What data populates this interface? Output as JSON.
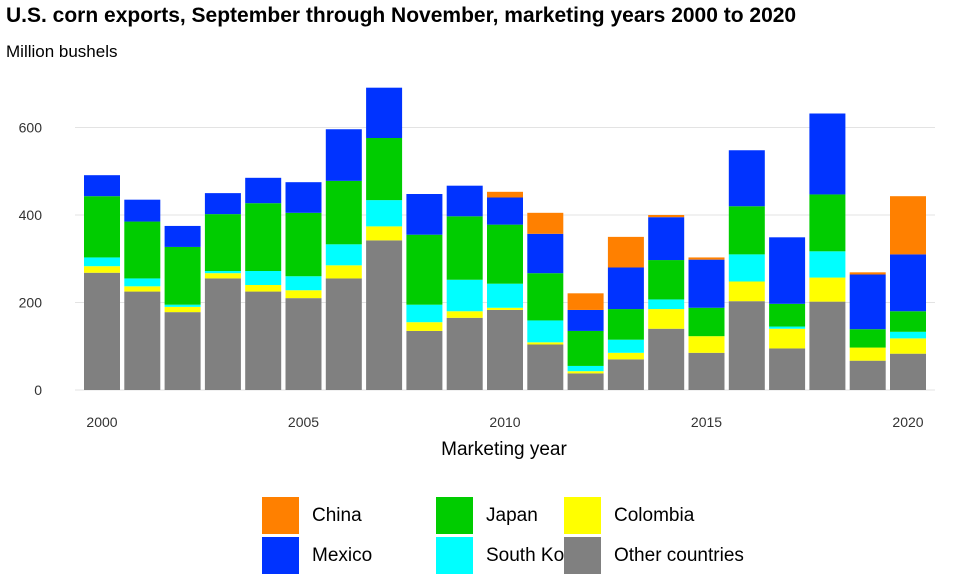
{
  "chart_data": {
    "type": "bar",
    "stacked": true,
    "title": "U.S. corn exports, September through November, marketing years 2000 to 2020",
    "subtitle": "Million bushels",
    "xlabel": "Marketing year",
    "ylabel": "",
    "ylim": [
      0,
      720
    ],
    "yticks": [
      0,
      200,
      400,
      600
    ],
    "xticks": [
      2000,
      2005,
      2010,
      2015,
      2020
    ],
    "grid": true,
    "legend_position": "bottom",
    "categories": [
      2000,
      2001,
      2002,
      2003,
      2004,
      2005,
      2006,
      2007,
      2008,
      2009,
      2010,
      2011,
      2012,
      2013,
      2014,
      2015,
      2016,
      2017,
      2018,
      2019,
      2020
    ],
    "series": [
      {
        "name": "Other countries",
        "color": "#808080",
        "values": [
          268,
          225,
          178,
          255,
          225,
          210,
          255,
          342,
          135,
          165,
          183,
          104,
          38,
          70,
          140,
          85,
          203,
          95,
          202,
          67,
          83
        ]
      },
      {
        "name": "Colombia",
        "color": "#FFFF00",
        "values": [
          15,
          12,
          12,
          12,
          15,
          18,
          30,
          32,
          20,
          15,
          5,
          5,
          5,
          15,
          45,
          38,
          45,
          45,
          55,
          30,
          35
        ]
      },
      {
        "name": "South Korea",
        "color": "#00FFFF",
        "values": [
          20,
          18,
          5,
          5,
          32,
          32,
          48,
          60,
          40,
          72,
          55,
          50,
          12,
          30,
          22,
          0,
          62,
          5,
          60,
          0,
          15
        ]
      },
      {
        "name": "Japan",
        "color": "#00CC00",
        "values": [
          140,
          130,
          132,
          130,
          155,
          145,
          145,
          142,
          160,
          145,
          135,
          108,
          80,
          70,
          90,
          65,
          110,
          52,
          130,
          42,
          47
        ]
      },
      {
        "name": "Mexico",
        "color": "#0033FF",
        "values": [
          48,
          50,
          48,
          48,
          58,
          70,
          118,
          115,
          93,
          70,
          62,
          90,
          48,
          95,
          98,
          110,
          128,
          152,
          185,
          125,
          130
        ]
      },
      {
        "name": "China",
        "color": "#FF8000",
        "values": [
          0,
          0,
          0,
          0,
          0,
          0,
          0,
          0,
          0,
          0,
          13,
          48,
          38,
          70,
          5,
          5,
          0,
          0,
          0,
          5,
          133
        ]
      }
    ]
  },
  "legend": {
    "items": [
      {
        "key": "china",
        "label": "China",
        "color": "#FF8000"
      },
      {
        "key": "japan",
        "label": "Japan",
        "color": "#00CC00"
      },
      {
        "key": "colombia",
        "label": "Colombia",
        "color": "#FFFF00"
      },
      {
        "key": "mexico",
        "label": "Mexico",
        "color": "#0033FF"
      },
      {
        "key": "south-korea",
        "label": "South Korea",
        "color": "#00FFFF"
      },
      {
        "key": "other-countries",
        "label": "Other countries",
        "color": "#808080"
      }
    ]
  }
}
